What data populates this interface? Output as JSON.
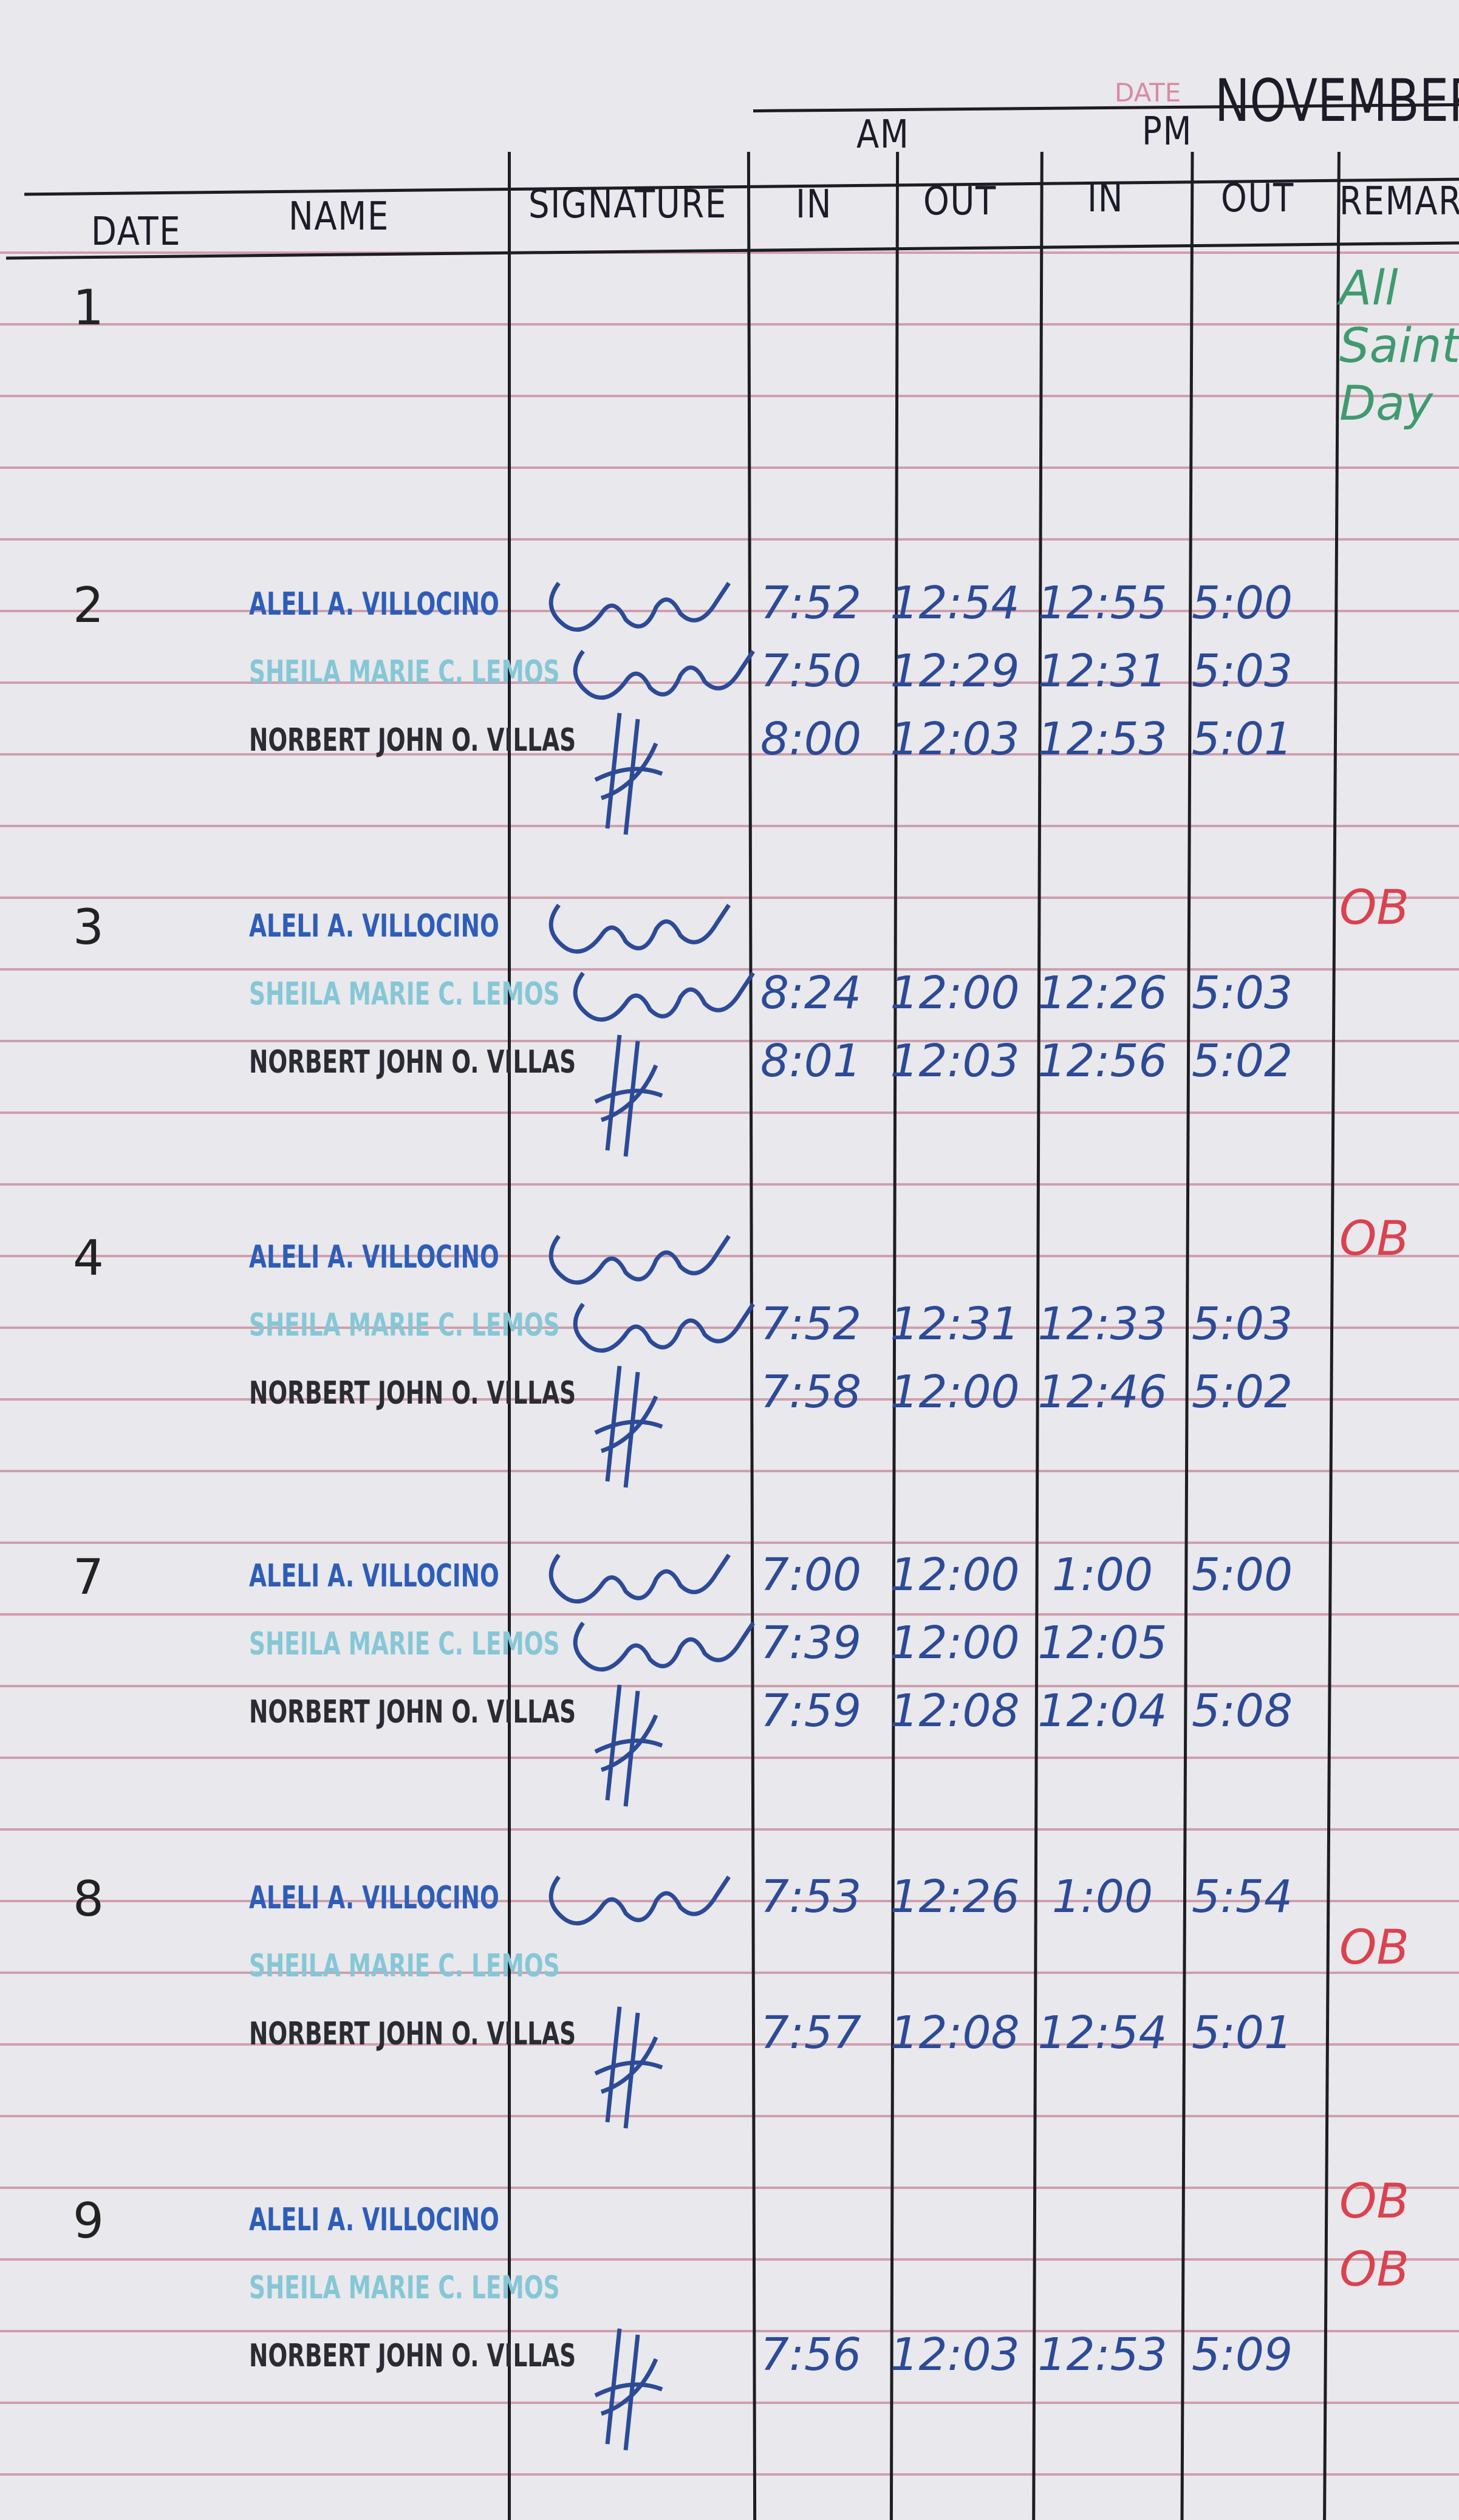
{
  "header": {
    "month": "NOVEMBER",
    "printed_date_label": "DATE",
    "columns": {
      "date": "DATE",
      "name": "NAME",
      "signature": "SIGNATURE",
      "am": "AM",
      "pm": "PM",
      "am_in": "IN",
      "am_out": "OUT",
      "pm_in": "IN",
      "pm_out": "OUT",
      "remarks": "REMARKS"
    }
  },
  "colors": {
    "ink_blue": "#2c4a96",
    "remark_red": "#d9434f",
    "remark_green": "#3f9a6f",
    "rule_pink": "#cf9fae"
  },
  "days": [
    {
      "date": "1",
      "remarks": [
        "All",
        "Saints",
        "Day"
      ],
      "remark_color": "green",
      "entries": []
    },
    {
      "date": "2",
      "remarks": [],
      "entries": [
        {
          "name": "ALELI A. VILLOCINO",
          "signed": true,
          "am_in": "7:52",
          "am_out": "12:54",
          "pm_in": "12:55",
          "pm_out": "5:00"
        },
        {
          "name": "SHEILA MARIE C. LEMOS",
          "signed": true,
          "am_in": "7:50",
          "am_out": "12:29",
          "pm_in": "12:31",
          "pm_out": "5:03"
        },
        {
          "name": "NORBERT JOHN O. VILLAS",
          "signed": true,
          "am_in": "8:00",
          "am_out": "12:03",
          "pm_in": "12:53",
          "pm_out": "5:01"
        }
      ]
    },
    {
      "date": "3",
      "remarks": [
        "OB"
      ],
      "remark_color": "red",
      "entries": [
        {
          "name": "ALELI A. VILLOCINO",
          "signed": true,
          "am_in": "",
          "am_out": "",
          "pm_in": "",
          "pm_out": ""
        },
        {
          "name": "SHEILA MARIE C. LEMOS",
          "signed": true,
          "am_in": "8:24",
          "am_out": "12:00",
          "pm_in": "12:26",
          "pm_out": "5:03"
        },
        {
          "name": "NORBERT JOHN O. VILLAS",
          "signed": true,
          "am_in": "8:01",
          "am_out": "12:03",
          "pm_in": "12:56",
          "pm_out": "5:02"
        }
      ]
    },
    {
      "date": "4",
      "remarks": [
        "OB"
      ],
      "remark_color": "red",
      "entries": [
        {
          "name": "ALELI A. VILLOCINO",
          "signed": true,
          "am_in": "",
          "am_out": "",
          "pm_in": "",
          "pm_out": ""
        },
        {
          "name": "SHEILA MARIE C. LEMOS",
          "signed": true,
          "am_in": "7:52",
          "am_out": "12:31",
          "pm_in": "12:33",
          "pm_out": "5:03"
        },
        {
          "name": "NORBERT JOHN O. VILLAS",
          "signed": true,
          "am_in": "7:58",
          "am_out": "12:00",
          "pm_in": "12:46",
          "pm_out": "5:02"
        }
      ]
    },
    {
      "date": "7",
      "remarks": [],
      "entries": [
        {
          "name": "ALELI A. VILLOCINO",
          "signed": true,
          "am_in": "7:00",
          "am_out": "12:00",
          "pm_in": "1:00",
          "pm_out": "5:00"
        },
        {
          "name": "SHEILA MARIE C. LEMOS",
          "signed": true,
          "am_in": "7:39",
          "am_out": "12:00",
          "pm_in": "12:05",
          "pm_out": ""
        },
        {
          "name": "NORBERT JOHN O. VILLAS",
          "signed": true,
          "am_in": "7:59",
          "am_out": "12:08",
          "pm_in": "12:04",
          "pm_out": "5:08"
        }
      ]
    },
    {
      "date": "8",
      "remarks": [
        "",
        "OB"
      ],
      "remark_color": "red",
      "entries": [
        {
          "name": "ALELI A. VILLOCINO",
          "signed": true,
          "am_in": "7:53",
          "am_out": "12:26",
          "pm_in": "1:00",
          "pm_out": "5:54"
        },
        {
          "name": "SHEILA MARIE C. LEMOS",
          "signed": false,
          "am_in": "",
          "am_out": "",
          "pm_in": "",
          "pm_out": ""
        },
        {
          "name": "NORBERT JOHN O. VILLAS",
          "signed": true,
          "am_in": "7:57",
          "am_out": "12:08",
          "pm_in": "12:54",
          "pm_out": "5:01"
        }
      ]
    },
    {
      "date": "9",
      "remarks": [
        "OB",
        "OB"
      ],
      "remark_color": "red",
      "entries": [
        {
          "name": "ALELI A. VILLOCINO",
          "signed": false,
          "am_in": "",
          "am_out": "",
          "pm_in": "",
          "pm_out": ""
        },
        {
          "name": "SHEILA MARIE C. LEMOS",
          "signed": false,
          "am_in": "",
          "am_out": "",
          "pm_in": "",
          "pm_out": ""
        },
        {
          "name": "NORBERT JOHN O. VILLAS",
          "signed": true,
          "am_in": "7:56",
          "am_out": "12:03",
          "pm_in": "12:53",
          "pm_out": "5:09"
        }
      ]
    }
  ]
}
